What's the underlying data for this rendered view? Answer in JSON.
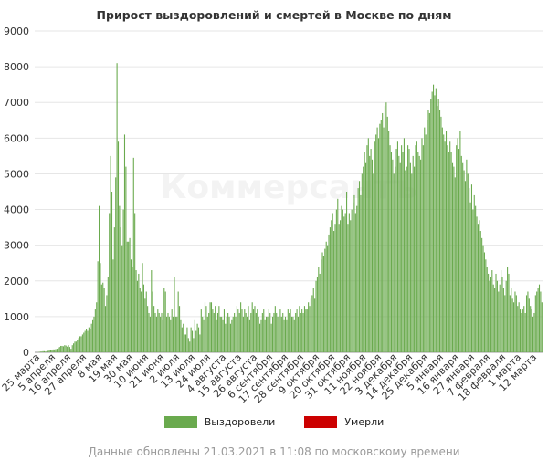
{
  "title": "Прирост выздоровлений и смертей в Москве по дням",
  "watermark": "Коммерсантъ",
  "footer": "Данные обновлены 21.03.2021 в 11:08 по московскому времени",
  "colors": {
    "recovered": "#6aaa4e",
    "deaths": "#cc0000",
    "grid": "#e6e6e6",
    "axis": "#999999"
  },
  "chart_data": {
    "type": "bar",
    "title": "Прирост выздоровлений и смертей в Москве по дням",
    "ylim": [
      0,
      9000
    ],
    "yticks": [
      0,
      1000,
      2000,
      3000,
      4000,
      5000,
      6000,
      7000,
      8000,
      9000
    ],
    "grid": true,
    "legend_position": "bottom",
    "x_tick_labels": [
      "25 марта",
      "5 апреля",
      "16 апреля",
      "27 апреля",
      "8 мая",
      "19 мая",
      "30 мая",
      "10 июня",
      "21 июня",
      "2 июля",
      "13 июля",
      "24 июля",
      "4 августа",
      "15 августа",
      "26 августа",
      "6 сентября",
      "17 сентября",
      "28 сентября",
      "9 октября",
      "20 октября",
      "31 октября",
      "11 ноября",
      "22 ноября",
      "3 декабря",
      "14 декабря",
      "25 декабря",
      "5 января",
      "16 января",
      "27 января",
      "7 февраля",
      "18 февраля",
      "1 марта",
      "12 марта"
    ],
    "series": [
      {
        "name": "Выздоровели",
        "color": "#6aaa4e",
        "values": [
          0,
          0,
          0,
          10,
          20,
          20,
          30,
          30,
          20,
          30,
          40,
          50,
          60,
          60,
          80,
          80,
          90,
          100,
          120,
          150,
          180,
          180,
          170,
          200,
          190,
          160,
          200,
          150,
          100,
          200,
          250,
          300,
          300,
          350,
          400,
          450,
          450,
          500,
          550,
          600,
          650,
          600,
          700,
          650,
          800,
          900,
          1000,
          1200,
          1400,
          2550,
          4100,
          2500,
          1900,
          1950,
          1800,
          1300,
          1600,
          2100,
          3900,
          5500,
          4500,
          2600,
          3500,
          4900,
          8100,
          5900,
          4100,
          3500,
          3000,
          4000,
          6100,
          5200,
          3100,
          3100,
          3200,
          2600,
          2400,
          5450,
          3900,
          2300,
          2000,
          2200,
          1800,
          1700,
          2500,
          1900,
          1500,
          1700,
          1300,
          1100,
          1000,
          2300,
          1700,
          1300,
          1100,
          1000,
          1200,
          1100,
          1000,
          1100,
          900,
          1800,
          1700,
          1000,
          1100,
          1000,
          900,
          1200,
          1000,
          2100,
          1000,
          1000,
          1700,
          1300,
          900,
          700,
          800,
          500,
          500,
          700,
          400,
          300,
          700,
          600,
          400,
          900,
          600,
          800,
          700,
          500,
          1200,
          1000,
          900,
          1400,
          1300,
          1000,
          1100,
          1400,
          1400,
          1200,
          1100,
          1300,
          900,
          1100,
          1300,
          1000,
          1000,
          900,
          1200,
          800,
          1000,
          1100,
          1000,
          800,
          900,
          1000,
          1100,
          1000,
          1300,
          1200,
          1100,
          1400,
          1200,
          1000,
          1200,
          1100,
          1000,
          1300,
          900,
          1100,
          1400,
          1200,
          1300,
          1100,
          1200,
          1000,
          800,
          900,
          1100,
          1200,
          900,
          1000,
          1000,
          1200,
          1100,
          800,
          1000,
          1100,
          1300,
          1100,
          1000,
          1000,
          1200,
          1000,
          1100,
          900,
          1000,
          900,
          1200,
          1100,
          1200,
          1000,
          1000,
          900,
          1100,
          1200,
          1000,
          1300,
          1100,
          1200,
          1100,
          1300,
          1200,
          1200,
          1400,
          1300,
          1500,
          1600,
          1800,
          1500,
          2000,
          2100,
          2400,
          2200,
          2600,
          2800,
          2700,
          2900,
          3100,
          3000,
          3300,
          3500,
          3700,
          3900,
          3400,
          3600,
          4000,
          4300,
          3600,
          3700,
          4100,
          4000,
          3800,
          3900,
          4500,
          3600,
          3900,
          3700,
          4000,
          4200,
          4400,
          3900,
          4100,
          4600,
          4800,
          4400,
          5000,
          5200,
          5600,
          5300,
          5800,
          6000,
          5500,
          5700,
          5400,
          5000,
          5900,
          6100,
          6300,
          6000,
          6400,
          6500,
          6700,
          6300,
          6900,
          7000,
          6600,
          6200,
          5800,
          5600,
          5400,
          5000,
          5200,
          5700,
          5900,
          5500,
          5300,
          5800,
          5600,
          6000,
          5100,
          5200,
          5800,
          5700,
          5300,
          5000,
          5500,
          5200,
          5800,
          5900,
          5600,
          5500,
          5400,
          6000,
          5800,
          6300,
          6100,
          6500,
          6800,
          6700,
          7100,
          7300,
          7500,
          7200,
          7400,
          6900,
          7100,
          6800,
          6600,
          6300,
          6100,
          5900,
          6200,
          5800,
          5600,
          5900,
          5600,
          5300,
          5200,
          4900,
          5800,
          6000,
          5700,
          6200,
          5500,
          5300,
          5100,
          4800,
          5400,
          5000,
          4600,
          4200,
          4700,
          4000,
          4400,
          4100,
          3800,
          3600,
          3700,
          3400,
          3200,
          3000,
          2800,
          2600,
          2400,
          2200,
          2000,
          2100,
          2300,
          1900,
          1800,
          2200,
          2000,
          1700,
          1900,
          2300,
          2100,
          1800,
          1600,
          2000,
          2400,
          2200,
          1600,
          1800,
          1500,
          1400,
          1700,
          1600,
          1300,
          1400,
          1200,
          1100,
          1200,
          1300,
          1100,
          1600,
          1700,
          1500,
          1300,
          1200,
          1000,
          1100,
          1600,
          1700,
          1800,
          1900,
          1700,
          1400
        ]
      },
      {
        "name": "Умерли",
        "color": "#cc0000",
        "values": [
          0,
          0,
          0,
          0,
          0,
          0,
          0,
          0,
          0,
          0,
          0,
          0,
          0,
          0,
          0,
          0,
          0,
          0,
          0,
          0,
          0,
          0,
          0,
          0,
          0,
          0,
          0,
          0,
          0,
          0,
          0,
          0,
          0,
          0,
          0,
          0,
          0,
          0,
          0,
          0,
          0,
          0,
          0,
          0,
          0,
          0,
          0,
          0,
          0,
          0,
          0,
          0,
          0,
          0,
          0,
          0,
          0,
          0,
          0,
          0,
          0,
          0,
          0,
          0,
          0,
          0,
          0,
          0,
          0,
          0,
          0,
          0,
          0,
          0,
          0,
          0,
          0,
          0,
          0,
          0,
          0,
          0,
          0,
          0,
          0,
          0,
          0,
          0,
          0,
          0,
          0,
          0,
          0,
          0,
          0,
          0,
          0,
          0,
          0,
          0,
          0,
          0,
          0,
          0,
          0,
          0,
          0,
          0,
          0,
          0,
          0,
          0,
          0,
          0,
          0,
          0,
          0,
          0,
          0,
          0,
          0,
          0,
          0,
          0,
          0,
          0,
          0,
          0,
          0,
          0,
          0,
          0,
          0,
          0,
          0,
          0,
          0,
          0,
          0,
          0,
          0,
          0,
          0,
          0,
          0,
          0,
          0,
          0,
          0,
          0,
          0,
          0,
          0,
          0,
          0,
          0,
          0,
          0,
          0,
          0,
          0,
          0,
          0,
          0,
          0,
          0,
          0,
          0,
          0,
          0,
          0,
          0,
          0,
          0,
          0,
          0,
          0,
          0,
          0,
          0,
          0,
          0,
          0,
          0,
          0,
          0,
          0,
          0,
          0,
          0,
          0,
          0,
          0,
          0,
          0,
          0,
          0,
          0,
          0,
          0,
          0,
          0,
          0,
          0,
          0,
          0,
          0,
          0,
          0,
          0,
          0,
          0,
          0,
          0,
          0,
          0,
          0,
          0,
          0,
          0,
          0,
          0,
          0,
          0,
          0,
          0,
          0,
          0,
          0,
          0,
          0,
          0,
          0,
          0,
          0,
          0,
          0,
          0,
          0,
          0,
          0,
          0,
          0,
          0,
          0,
          0,
          0,
          0,
          0,
          0,
          0,
          0,
          0,
          0,
          0,
          0,
          0,
          0,
          0,
          0,
          0,
          0,
          0,
          0,
          0,
          0,
          0,
          0,
          0,
          0,
          0,
          0,
          0,
          0,
          0,
          0,
          0,
          0,
          0,
          0,
          0,
          0,
          0,
          0,
          0,
          0,
          0,
          0,
          0,
          0,
          0,
          0,
          0,
          0,
          0,
          0,
          0,
          0,
          0,
          0,
          0,
          0,
          0,
          0,
          0,
          0,
          0,
          0,
          0,
          0,
          0,
          0,
          0,
          0,
          0,
          0,
          0,
          0,
          0,
          0,
          0,
          0,
          0,
          0,
          0,
          0,
          0,
          0,
          0,
          0,
          0,
          0,
          0,
          0,
          0,
          0,
          0,
          0,
          0,
          0,
          0,
          0,
          0,
          0,
          0,
          0,
          0,
          0,
          0,
          0,
          0,
          0,
          0,
          0,
          0,
          0,
          0,
          0,
          0,
          0,
          0,
          0,
          0,
          0,
          0,
          0,
          0,
          0,
          0,
          0,
          0,
          0,
          0,
          0,
          0,
          0,
          0,
          0,
          0,
          0,
          0,
          0,
          0,
          0,
          0,
          0,
          0,
          0,
          0,
          0,
          0,
          0,
          0,
          0,
          0,
          0,
          0,
          0,
          0,
          0,
          0,
          0,
          0,
          0,
          0,
          0,
          0,
          0,
          0,
          0,
          0,
          0,
          0,
          0,
          0,
          0,
          0,
          0,
          0,
          0,
          0,
          0,
          0,
          0,
          0,
          0,
          0,
          0,
          0,
          0,
          0,
          0,
          0,
          0,
          0,
          0,
          0
        ]
      }
    ]
  }
}
